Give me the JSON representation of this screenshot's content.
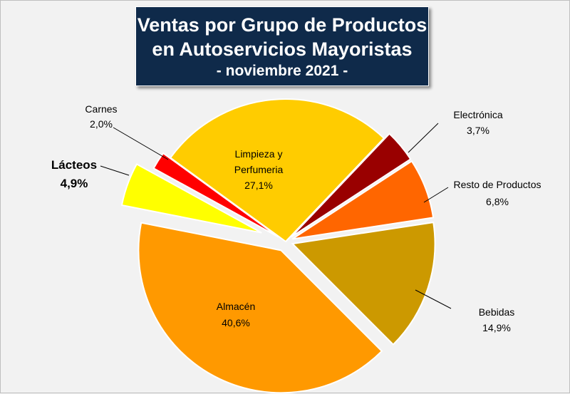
{
  "chart_data": {
    "type": "pie",
    "title": [
      "Ventas por Grupo de Productos",
      "en Autoservicios Mayoristas"
    ],
    "subtitle": "- noviembre 2021 -",
    "legend": "none",
    "slices": [
      {
        "name": "Limpieza y Perfumeria",
        "value": 27.1,
        "label": "27,1%",
        "color": "#ffcc00",
        "explode": 0
      },
      {
        "name": "Electrónica",
        "value": 3.7,
        "label": "3,7%",
        "color": "#990000",
        "explode": 10
      },
      {
        "name": "Resto de Productos",
        "value": 6.8,
        "label": "6,8%",
        "color": "#ff6600",
        "explode": 10
      },
      {
        "name": "Bebidas",
        "value": 14.9,
        "label": "14,9%",
        "color": "#cc9900",
        "explode": 10
      },
      {
        "name": "Almacén",
        "value": 40.6,
        "label": "40,6%",
        "color": "#ff9900",
        "explode": 14
      },
      {
        "name": "Lácteos",
        "value": 4.9,
        "label": "4,9%",
        "color": "#ffff00",
        "explode": 36
      },
      {
        "name": "Carnes",
        "value": 2.0,
        "label": "2,0%",
        "color": "#ff0000",
        "explode": 12
      }
    ]
  }
}
